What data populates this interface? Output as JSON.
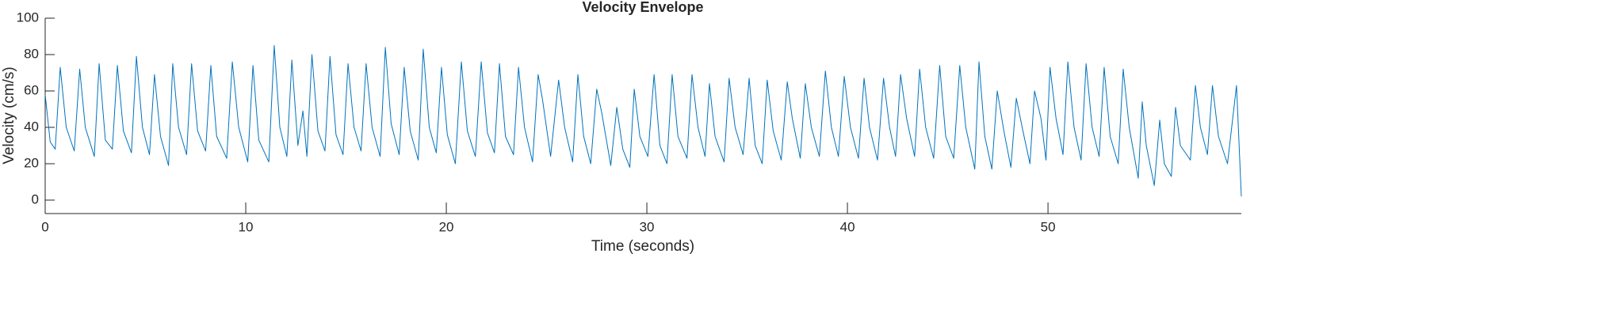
{
  "chart_data": {
    "type": "line",
    "title": "Velocity Envelope",
    "x_label": "Time (seconds)",
    "y_label": "Velocity (cm/s)",
    "xlim": [
      0,
      59.64
    ],
    "ylim": [
      -7.4,
      100
    ],
    "xticks": [
      0,
      10,
      20,
      30,
      40,
      50
    ],
    "yticks": [
      0,
      20,
      40,
      60,
      80,
      100
    ],
    "grid": false,
    "x": [
      0,
      0.25,
      0.5,
      0.75,
      1.05,
      1.45,
      1.72,
      2.0,
      2.45,
      2.69,
      3.0,
      3.35,
      3.6,
      3.9,
      4.3,
      4.55,
      4.85,
      5.2,
      5.45,
      5.75,
      6.15,
      6.36,
      6.65,
      7.05,
      7.3,
      7.6,
      8.0,
      8.26,
      8.55,
      9.05,
      9.33,
      9.65,
      10.1,
      10.36,
      10.65,
      11.15,
      11.42,
      11.7,
      12.05,
      12.3,
      12.6,
      12.85,
      13.05,
      13.3,
      13.6,
      13.95,
      14.2,
      14.5,
      14.85,
      15.1,
      15.4,
      15.75,
      16.0,
      16.3,
      16.7,
      16.96,
      17.25,
      17.65,
      17.9,
      18.2,
      18.6,
      18.85,
      19.15,
      19.5,
      19.76,
      20.05,
      20.45,
      20.75,
      21.05,
      21.45,
      21.74,
      22.05,
      22.4,
      22.65,
      22.95,
      23.35,
      23.6,
      23.9,
      24.3,
      24.58,
      24.8,
      25.2,
      25.6,
      25.9,
      26.3,
      26.56,
      26.85,
      27.2,
      27.5,
      27.75,
      28.2,
      28.5,
      28.8,
      29.15,
      29.37,
      29.65,
      30.05,
      30.36,
      30.65,
      31.0,
      31.26,
      31.55,
      32.0,
      32.25,
      32.55,
      32.9,
      33.12,
      33.4,
      33.85,
      34.1,
      34.4,
      34.8,
      35.1,
      35.4,
      35.75,
      36.0,
      36.3,
      36.7,
      37.0,
      37.25,
      37.65,
      37.9,
      38.2,
      38.6,
      38.9,
      39.2,
      39.55,
      39.84,
      40.15,
      40.55,
      40.83,
      41.1,
      41.5,
      41.8,
      42.1,
      42.4,
      42.65,
      42.95,
      43.35,
      43.6,
      43.9,
      44.3,
      44.6,
      44.9,
      45.3,
      45.6,
      45.9,
      46.35,
      46.56,
      46.85,
      47.2,
      47.47,
      47.8,
      48.15,
      48.42,
      48.75,
      49.1,
      49.33,
      49.65,
      49.9,
      50.1,
      50.4,
      50.75,
      50.99,
      51.3,
      51.65,
      51.9,
      52.2,
      52.55,
      52.8,
      53.1,
      53.5,
      53.75,
      54.05,
      54.5,
      54.7,
      54.9,
      55.3,
      55.57,
      55.8,
      56.15,
      56.36,
      56.6,
      57.1,
      57.35,
      57.6,
      57.95,
      58.2,
      58.5,
      58.95,
      59.4,
      59.64
    ],
    "series": [
      {
        "color": "#0072BD",
        "values": [
          58,
          32,
          28,
          73,
          40,
          27,
          72,
          40,
          24,
          75,
          33,
          28,
          74,
          38,
          26,
          79,
          40,
          25,
          69,
          35,
          19,
          75,
          40,
          25,
          75,
          38,
          27,
          74,
          35,
          23,
          76,
          40,
          21,
          74,
          33,
          21,
          85,
          40,
          24,
          77,
          30,
          49,
          24,
          80,
          38,
          27,
          79,
          36,
          25,
          75,
          40,
          27,
          75,
          40,
          24,
          84,
          42,
          25,
          73,
          38,
          22,
          83,
          40,
          26,
          73,
          36,
          20,
          76,
          38,
          24,
          76,
          37,
          26,
          75,
          35,
          25,
          73,
          40,
          21,
          69,
          55,
          24,
          66,
          40,
          21,
          69,
          35,
          20,
          61,
          48,
          19,
          51,
          28,
          18,
          61,
          35,
          24,
          69,
          30,
          20,
          69,
          35,
          23,
          69,
          40,
          24,
          64,
          35,
          21,
          67,
          40,
          25,
          67,
          30,
          20,
          66,
          38,
          22,
          65,
          45,
          23,
          64,
          40,
          24,
          71,
          40,
          24,
          68,
          40,
          23,
          67,
          40,
          22,
          67,
          40,
          24,
          69,
          45,
          24,
          72,
          40,
          23,
          74,
          35,
          23,
          74,
          40,
          17,
          76,
          35,
          17,
          60,
          38,
          18,
          56,
          38,
          20,
          60,
          45,
          22,
          73,
          45,
          25,
          76,
          40,
          22,
          75,
          40,
          24,
          73,
          35,
          20,
          72,
          40,
          12,
          54,
          30,
          8,
          44,
          20,
          13,
          51,
          30,
          22,
          63,
          40,
          25,
          63,
          35,
          20,
          63,
          2
        ]
      }
    ]
  }
}
